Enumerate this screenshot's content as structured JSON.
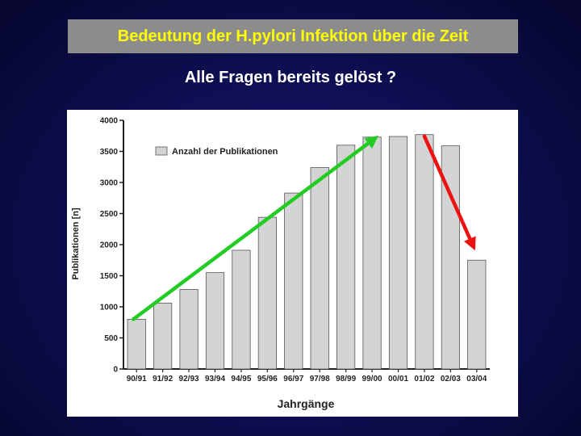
{
  "slide": {
    "title": "Bedeutung der H.pylori Infektion über die Zeit",
    "subtitle": "Alle Fragen bereits gelöst ?"
  },
  "colors": {
    "title_text": "#ffff00",
    "title_bg": "#8c8c8c",
    "bar_fill": "#d4d4d4",
    "up_arrow": "#22cc22",
    "down_arrow": "#ee1111"
  },
  "chart_data": {
    "type": "bar",
    "categories": [
      "90/91",
      "91/92",
      "92/93",
      "93/94",
      "94/95",
      "95/96",
      "96/97",
      "97/98",
      "98/99",
      "99/00",
      "00/01",
      "01/02",
      "02/03",
      "03/04"
    ],
    "series": [
      {
        "name": "Anzahl der Publikationen",
        "values": [
          800,
          1060,
          1280,
          1550,
          1910,
          2440,
          2830,
          3240,
          3600,
          3730,
          3740,
          3770,
          3590,
          1750
        ]
      }
    ],
    "title": "",
    "xlabel": "Jahrgänge",
    "ylabel": "Publikationen [n]",
    "ylim": [
      0,
      4000
    ],
    "yticks": [
      0,
      500,
      1000,
      1500,
      2000,
      2500,
      3000,
      3500,
      4000
    ],
    "legend_placement": "top-left",
    "grid": false,
    "annotations": [
      {
        "type": "arrow",
        "color": "green",
        "from_category": "90/91",
        "from_value": 800,
        "to_category": "99/00",
        "to_value": 3740
      },
      {
        "type": "arrow",
        "color": "red",
        "from_category": "01/02",
        "from_value": 3770,
        "to_category": "03/04",
        "to_value": 1750
      }
    ]
  }
}
